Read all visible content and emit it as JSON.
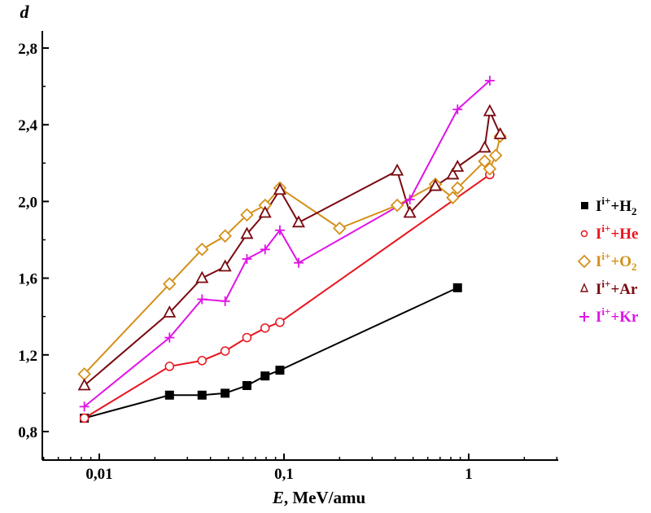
{
  "chart_data": {
    "type": "line",
    "title": "",
    "ylabel": "d",
    "xlabel_italic": "E",
    "xlabel_rest": ", MeV/amu",
    "xscale": "log",
    "xlim": [
      0.005,
      3.0
    ],
    "ylim": [
      0.7,
      2.9
    ],
    "x_ticks": [
      {
        "value": 0.01,
        "label": "0,01"
      },
      {
        "value": 0.1,
        "label": "0,1"
      },
      {
        "value": 1,
        "label": "1"
      }
    ],
    "y_ticks": [
      {
        "value": 0.8,
        "label": "0,8"
      },
      {
        "value": 1.2,
        "label": "1,2"
      },
      {
        "value": 1.6,
        "label": "1,6"
      },
      {
        "value": 2.0,
        "label": "2,0"
      },
      {
        "value": 2.4,
        "label": "2,4"
      },
      {
        "value": 2.8,
        "label": "2,8"
      }
    ],
    "legend_position": "right",
    "series": [
      {
        "id": "h2",
        "legend_base": "I",
        "legend_sup": "i+",
        "legend_rest": "+H",
        "legend_sub": "2",
        "color": "#000000",
        "line_color": "#000000",
        "marker": "square-filled",
        "x": [
          0.0083,
          0.024,
          0.036,
          0.048,
          0.063,
          0.079,
          0.095,
          0.87
        ],
        "y": [
          0.87,
          0.99,
          0.99,
          1.0,
          1.04,
          1.09,
          1.12,
          1.55
        ]
      },
      {
        "id": "he",
        "legend_base": "I",
        "legend_sup": "i+",
        "legend_rest": "+He",
        "legend_sub": "",
        "color": "#e8141e",
        "line_color": "#e8141e",
        "marker": "circle-open",
        "x": [
          0.0083,
          0.024,
          0.036,
          0.048,
          0.063,
          0.079,
          0.095,
          1.3
        ],
        "y": [
          0.87,
          1.14,
          1.17,
          1.22,
          1.29,
          1.34,
          1.37,
          2.14
        ]
      },
      {
        "id": "o2",
        "legend_base": "I",
        "legend_sup": "i+",
        "legend_rest": "+O",
        "legend_sub": "2",
        "color": "#d4901a",
        "line_color": "#d4901a",
        "marker": "diamond-open",
        "x": [
          0.0083,
          0.024,
          0.036,
          0.048,
          0.063,
          0.079,
          0.095,
          0.2,
          0.41,
          0.66,
          0.82,
          0.87,
          1.22,
          1.3,
          1.4,
          1.48
        ],
        "y": [
          1.1,
          1.57,
          1.75,
          1.82,
          1.93,
          1.98,
          2.07,
          1.86,
          1.98,
          2.09,
          2.02,
          2.07,
          2.21,
          2.17,
          2.24,
          2.34
        ]
      },
      {
        "id": "ar",
        "legend_base": "I",
        "legend_sup": "i+",
        "legend_rest": "+Ar",
        "legend_sub": "",
        "color": "#7a0a10",
        "line_color": "#7a0a10",
        "marker": "triangle-open",
        "x": [
          0.0083,
          0.024,
          0.036,
          0.048,
          0.063,
          0.079,
          0.095,
          0.12,
          0.41,
          0.48,
          0.66,
          0.82,
          0.87,
          1.22,
          1.3,
          1.48
        ],
        "y": [
          1.04,
          1.42,
          1.6,
          1.66,
          1.83,
          1.94,
          2.06,
          1.89,
          2.16,
          1.94,
          2.08,
          2.14,
          2.18,
          2.28,
          2.47,
          2.35
        ]
      },
      {
        "id": "kr",
        "legend_base": "I",
        "legend_sup": "i+",
        "legend_rest": "+Kr",
        "legend_sub": "",
        "color": "#e014e6",
        "line_color": "#e014e6",
        "marker": "plus",
        "x": [
          0.0083,
          0.024,
          0.036,
          0.048,
          0.063,
          0.079,
          0.095,
          0.12,
          0.48,
          0.87,
          1.3
        ],
        "y": [
          0.93,
          1.29,
          1.49,
          1.48,
          1.7,
          1.75,
          1.85,
          1.68,
          2.01,
          2.48,
          2.63
        ]
      }
    ]
  }
}
